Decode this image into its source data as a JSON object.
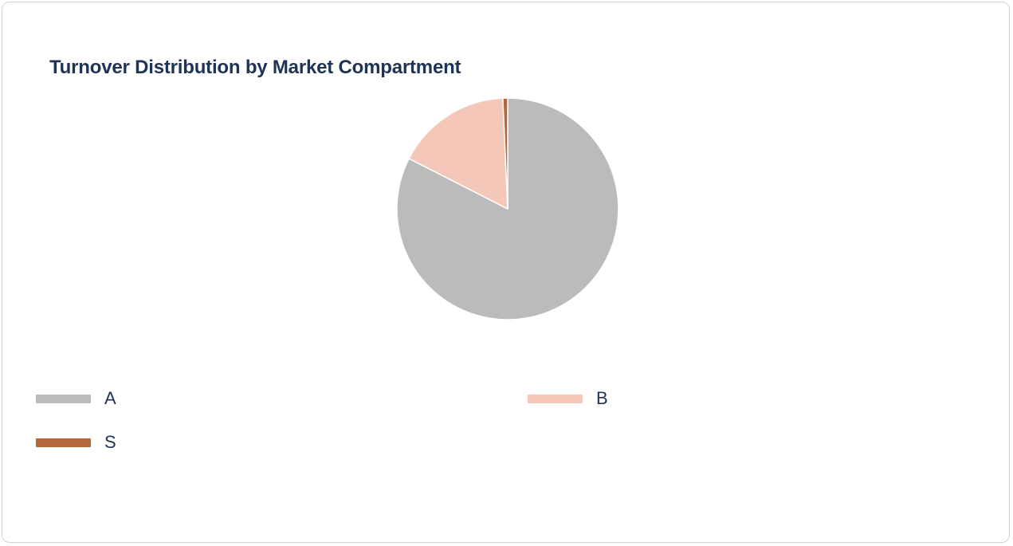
{
  "chart_data": {
    "type": "pie",
    "title": "Turnover Distribution by Market Compartment",
    "slices": [
      {
        "label": "A",
        "value": 82.5,
        "color": "#bbbbbb"
      },
      {
        "label": "B",
        "value": 16.8,
        "color": "#f4c7b8"
      },
      {
        "label": "S",
        "value": 0.7,
        "color": "#b5673a"
      }
    ],
    "legend_placement": "bottom",
    "slice_border_color": "#ffffff"
  }
}
